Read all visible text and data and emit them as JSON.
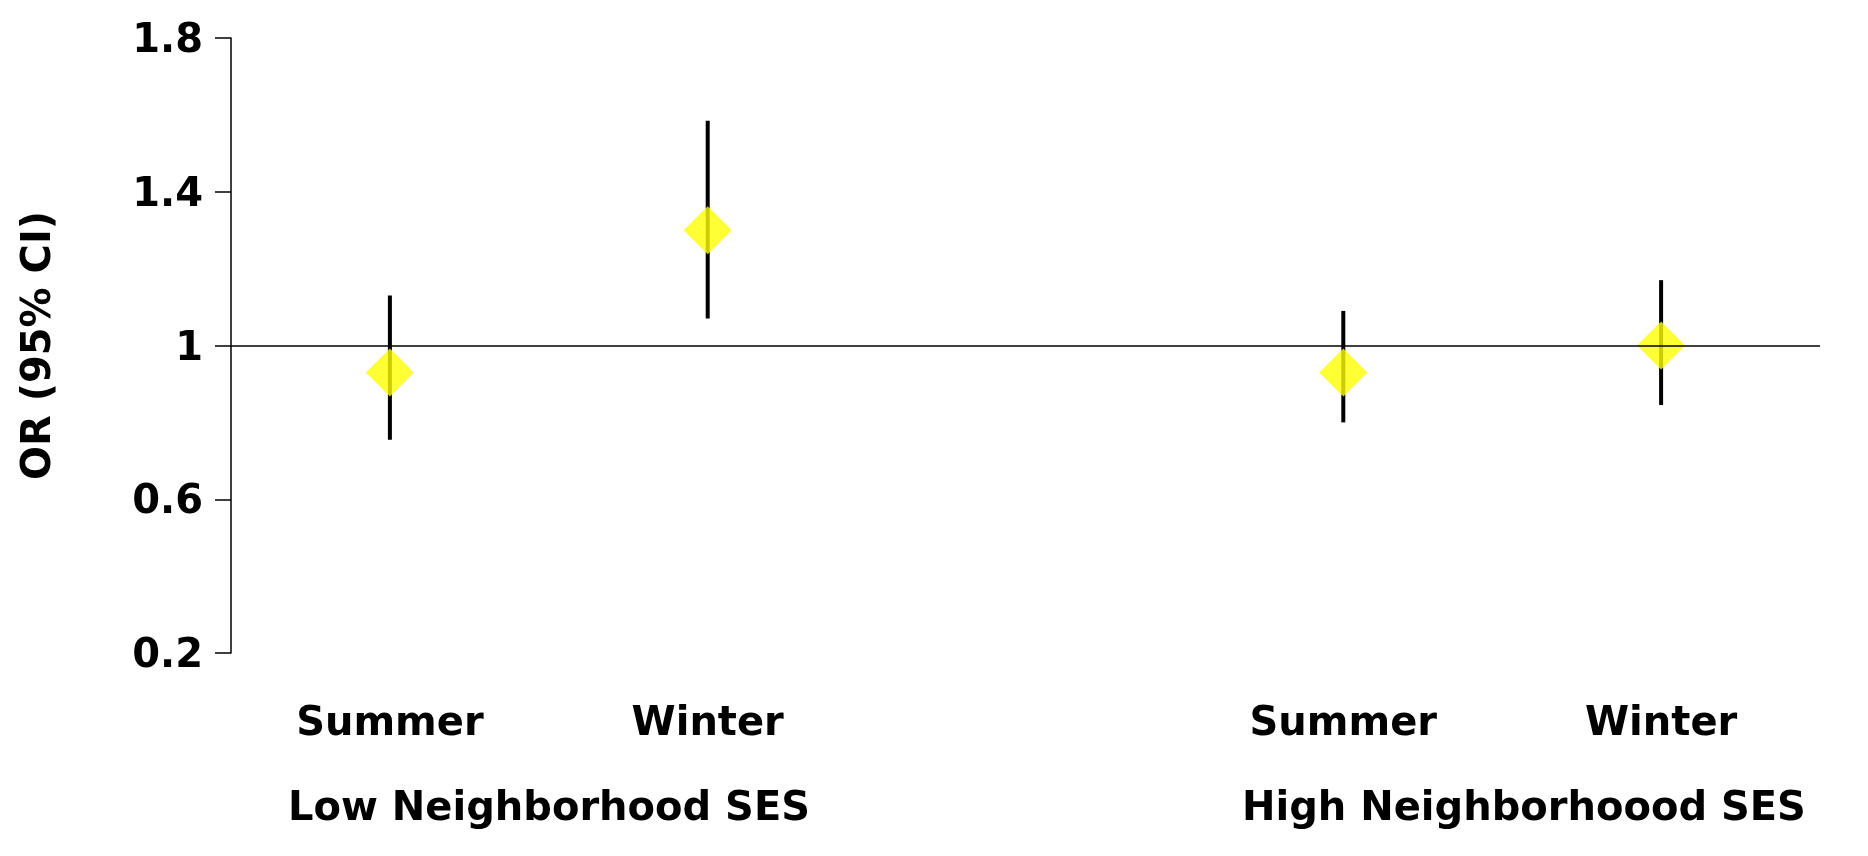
{
  "chart_data": {
    "type": "scatter",
    "ylabel": "OR (95% CI)",
    "categories": [
      "Summer",
      "Winter",
      null,
      "Summer",
      "Winter"
    ],
    "series": [
      {
        "color": "#ffff00",
        "values": [
          0.93,
          1.3,
          null,
          0.93,
          1.0
        ],
        "errors": [
          [
            0.755,
            1.13
          ],
          [
            1.07,
            1.585
          ],
          null,
          [
            0.8,
            1.09
          ],
          [
            0.845,
            1.17
          ]
        ]
      }
    ],
    "ylim": [
      0.2,
      1.8
    ],
    "yticks": [
      0.2,
      0.6,
      1,
      1.4,
      1.8
    ],
    "marker": "diamond",
    "grid": false,
    "ref_lines": [
      {
        "axis": "y",
        "value": 1
      }
    ],
    "annotations": [
      "Low Neighborhood SES",
      "High Neighborhoood SES"
    ]
  }
}
